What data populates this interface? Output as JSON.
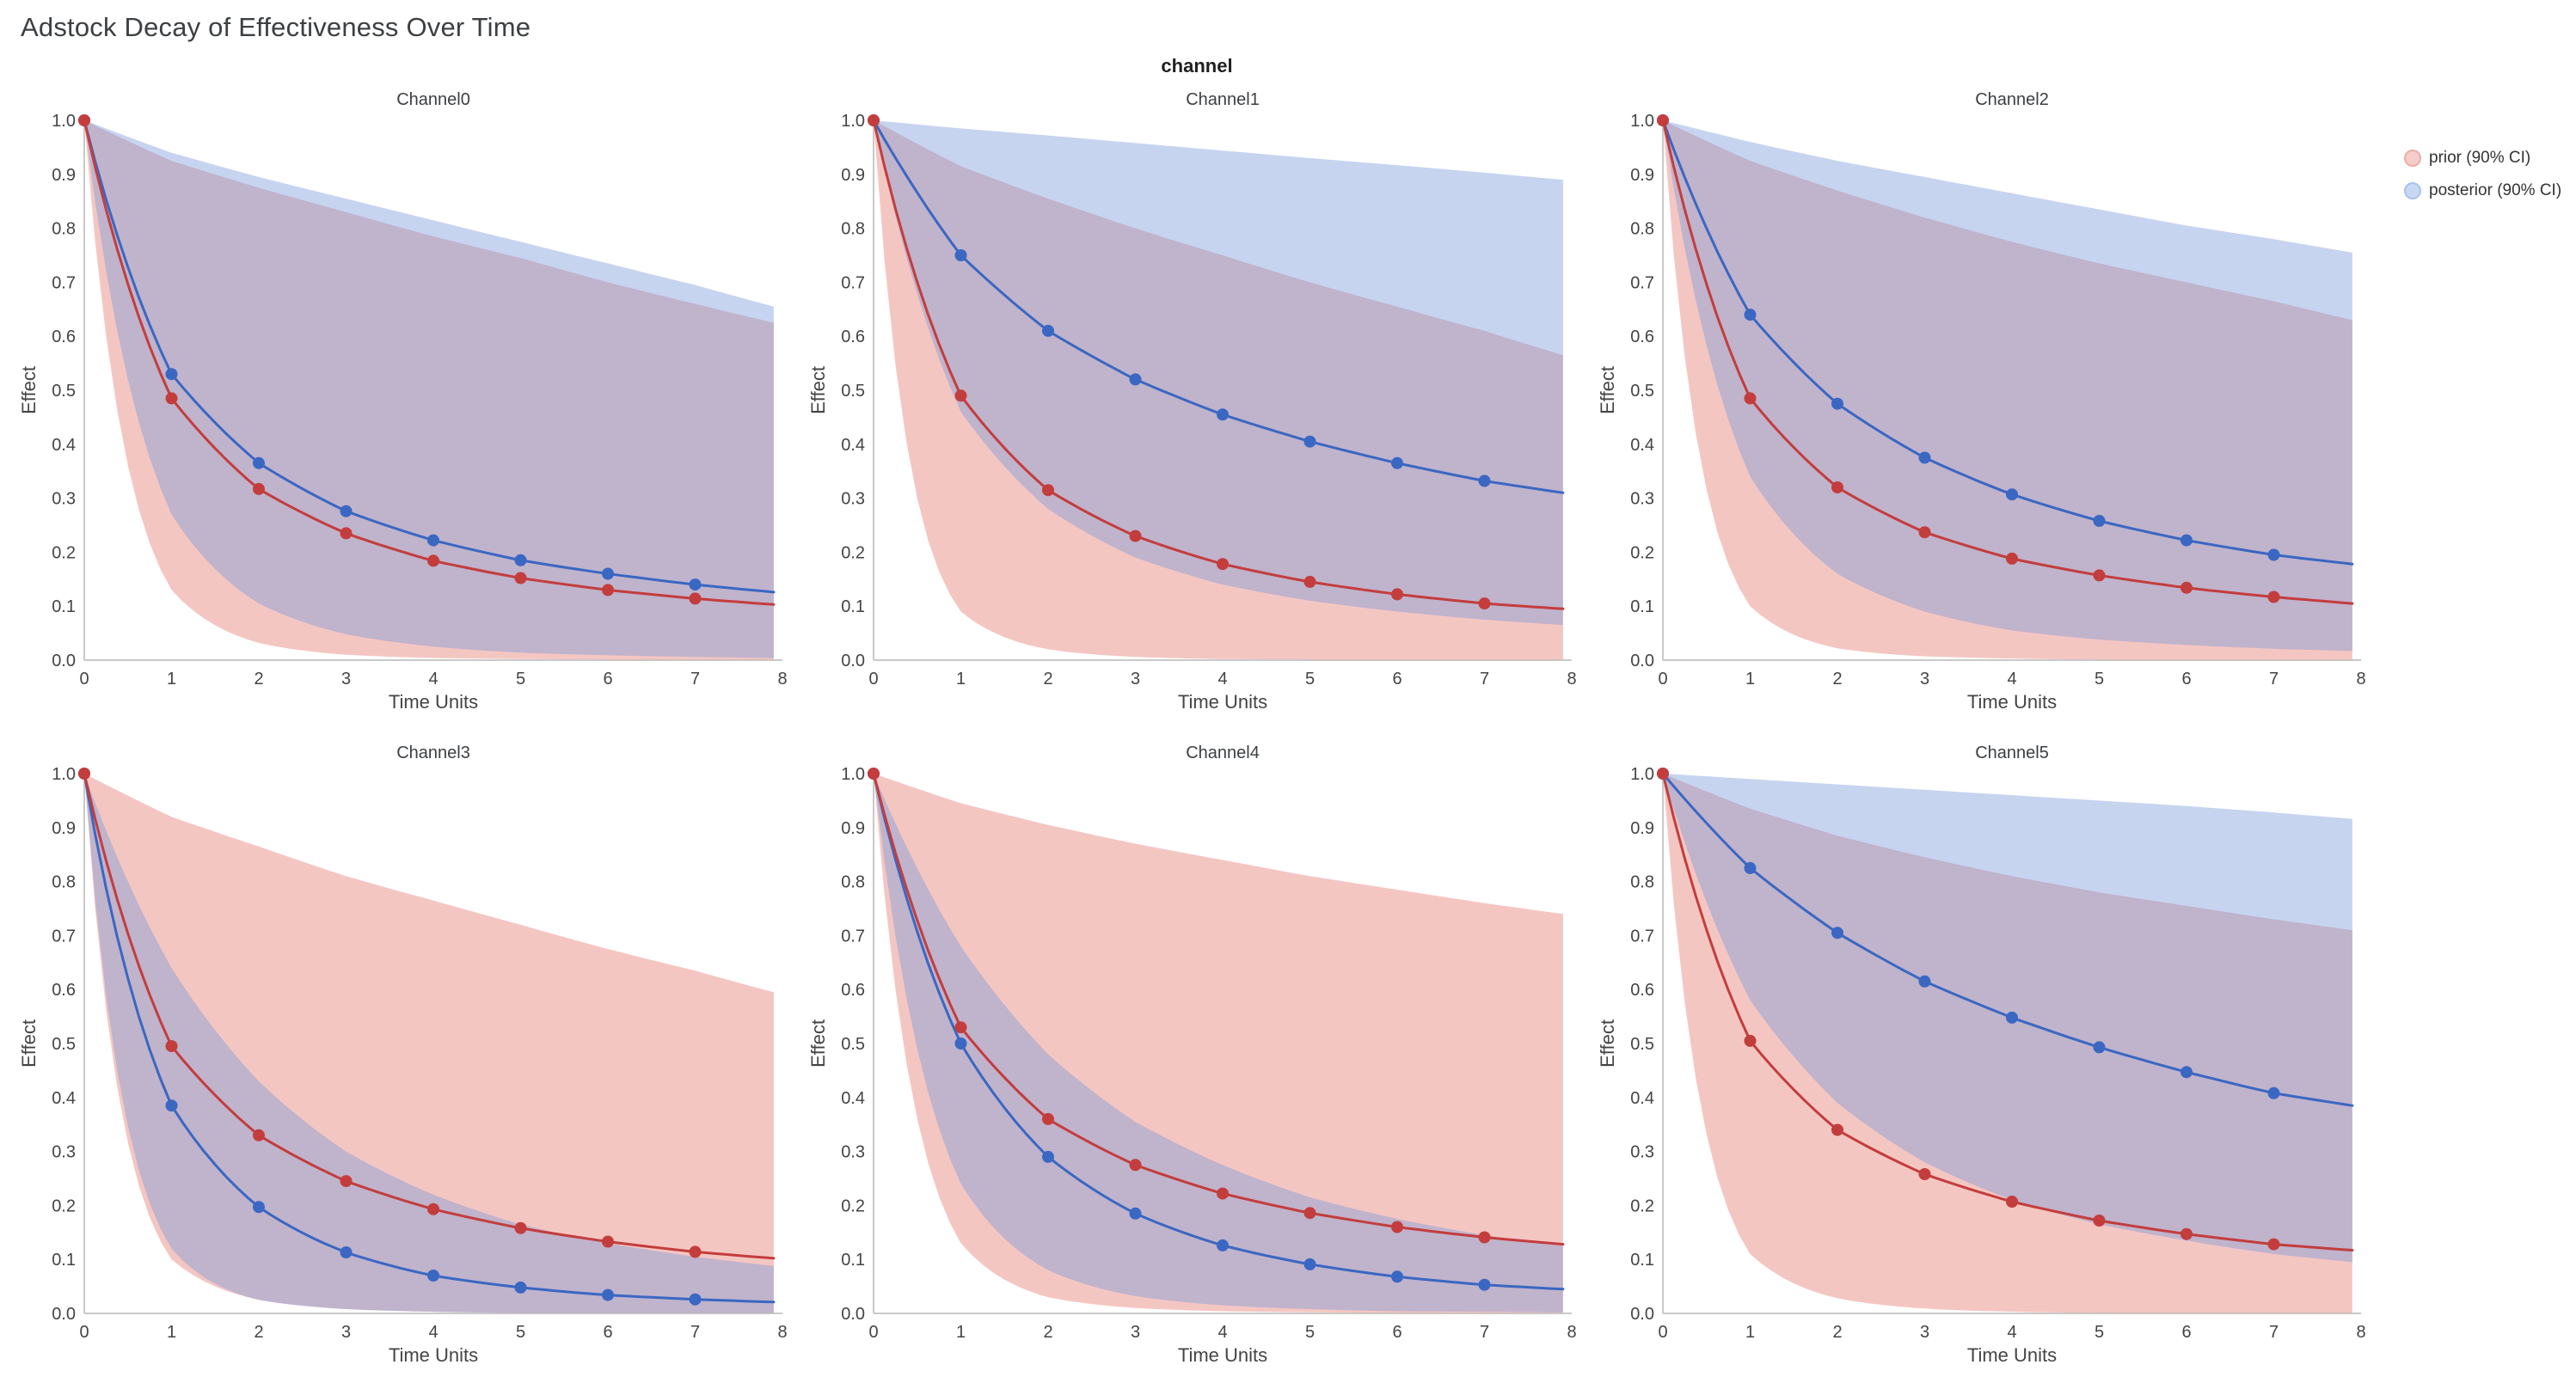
{
  "title": "Adstock Decay of Effectiveness Over Time",
  "facet_label": "channel",
  "axes": {
    "xlabel": "Time Units",
    "ylabel": "Effect",
    "xlim": [
      0,
      8
    ],
    "ylim": [
      0,
      1
    ],
    "x_ticks": [
      0,
      1,
      2,
      3,
      4,
      5,
      6,
      7,
      8
    ],
    "y_ticks": [
      "0.0",
      "0.1",
      "0.2",
      "0.3",
      "0.4",
      "0.5",
      "0.6",
      "0.7",
      "0.8",
      "0.9",
      "1.0"
    ],
    "grid": false
  },
  "legend": {
    "position": "top-right",
    "items": [
      {
        "id": "prior",
        "label": "prior (90% CI)",
        "swatch_fill": "#f4cdc9",
        "swatch_stroke": "#edaca4"
      },
      {
        "id": "posterior",
        "label": "posterior (90% CI)",
        "swatch_fill": "#c9d8f2",
        "swatch_stroke": "#a8c2ec"
      }
    ]
  },
  "style": {
    "prior_color": "#c33d3d",
    "posterior_color": "#3a67c2",
    "prior_band": "rgba(228,118,110,0.42)",
    "posterior_band": "rgba(120,153,219,0.42)",
    "axis_color": "#c9c9c9",
    "tick_text": "#444444",
    "title_text": "#3c4043",
    "marker_radius": 7,
    "line_width": 3
  },
  "chart_data": [
    {
      "type": "line",
      "title": "Channel0",
      "xlabel": "Time Units",
      "ylabel": "Effect",
      "x": [
        0,
        1,
        2,
        3,
        4,
        5,
        6,
        7,
        7.9
      ],
      "markers_at": [
        0,
        1,
        2,
        3,
        4,
        5,
        6,
        7
      ],
      "series": [
        {
          "name": "prior 90% CI",
          "role": "prior_band",
          "upper": [
            1.0,
            0.925,
            0.875,
            0.83,
            0.785,
            0.745,
            0.7,
            0.66,
            0.625
          ],
          "lower": [
            1.0,
            0.13,
            0.032,
            0.01,
            0.004,
            0.002,
            0.001,
            0.001,
            0.001
          ]
        },
        {
          "name": "posterior 90% CI",
          "role": "posterior_band",
          "upper": [
            1.0,
            0.94,
            0.895,
            0.855,
            0.815,
            0.775,
            0.735,
            0.695,
            0.655
          ],
          "lower": [
            1.0,
            0.27,
            0.105,
            0.048,
            0.025,
            0.014,
            0.009,
            0.006,
            0.004
          ]
        },
        {
          "name": "posterior mean",
          "role": "posterior_line",
          "values": [
            1.0,
            0.53,
            0.365,
            0.276,
            0.222,
            0.185,
            0.16,
            0.14,
            0.126
          ]
        },
        {
          "name": "prior mean",
          "role": "prior_line",
          "values": [
            1.0,
            0.485,
            0.317,
            0.235,
            0.184,
            0.152,
            0.13,
            0.114,
            0.103
          ]
        }
      ]
    },
    {
      "type": "line",
      "title": "Channel1",
      "xlabel": "Time Units",
      "ylabel": "Effect",
      "x": [
        0,
        1,
        2,
        3,
        4,
        5,
        6,
        7,
        7.9
      ],
      "markers_at": [
        0,
        1,
        2,
        3,
        4,
        5,
        6,
        7
      ],
      "series": [
        {
          "name": "prior 90% CI",
          "role": "prior_band",
          "upper": [
            1.0,
            0.915,
            0.855,
            0.8,
            0.75,
            0.7,
            0.655,
            0.61,
            0.565
          ],
          "lower": [
            1.0,
            0.09,
            0.02,
            0.006,
            0.002,
            0.001,
            0.001,
            0.001,
            0.001
          ]
        },
        {
          "name": "posterior 90% CI",
          "role": "posterior_band",
          "upper": [
            1.0,
            0.985,
            0.972,
            0.958,
            0.944,
            0.93,
            0.917,
            0.903,
            0.89
          ],
          "lower": [
            1.0,
            0.46,
            0.28,
            0.19,
            0.14,
            0.11,
            0.09,
            0.075,
            0.065
          ]
        },
        {
          "name": "posterior mean",
          "role": "posterior_line",
          "values": [
            1.0,
            0.75,
            0.61,
            0.52,
            0.455,
            0.405,
            0.365,
            0.332,
            0.31
          ]
        },
        {
          "name": "prior mean",
          "role": "prior_line",
          "values": [
            1.0,
            0.49,
            0.315,
            0.23,
            0.178,
            0.145,
            0.122,
            0.105,
            0.095
          ]
        }
      ]
    },
    {
      "type": "line",
      "title": "Channel2",
      "xlabel": "Time Units",
      "ylabel": "Effect",
      "x": [
        0,
        1,
        2,
        3,
        4,
        5,
        6,
        7,
        7.9
      ],
      "markers_at": [
        0,
        1,
        2,
        3,
        4,
        5,
        6,
        7
      ],
      "series": [
        {
          "name": "prior 90% CI",
          "role": "prior_band",
          "upper": [
            1.0,
            0.925,
            0.87,
            0.82,
            0.775,
            0.735,
            0.7,
            0.665,
            0.63
          ],
          "lower": [
            1.0,
            0.1,
            0.022,
            0.007,
            0.003,
            0.001,
            0.001,
            0.001,
            0.001
          ]
        },
        {
          "name": "posterior 90% CI",
          "role": "posterior_band",
          "upper": [
            1.0,
            0.96,
            0.925,
            0.895,
            0.865,
            0.835,
            0.805,
            0.78,
            0.755
          ],
          "lower": [
            1.0,
            0.34,
            0.16,
            0.09,
            0.055,
            0.038,
            0.028,
            0.021,
            0.017
          ]
        },
        {
          "name": "posterior mean",
          "role": "posterior_line",
          "values": [
            1.0,
            0.64,
            0.475,
            0.375,
            0.307,
            0.258,
            0.222,
            0.195,
            0.178
          ]
        },
        {
          "name": "prior mean",
          "role": "prior_line",
          "values": [
            1.0,
            0.485,
            0.32,
            0.237,
            0.188,
            0.157,
            0.134,
            0.117,
            0.105
          ]
        }
      ]
    },
    {
      "type": "line",
      "title": "Channel3",
      "xlabel": "Time Units",
      "ylabel": "Effect",
      "x": [
        0,
        1,
        2,
        3,
        4,
        5,
        6,
        7,
        7.9
      ],
      "markers_at": [
        0,
        1,
        2,
        3,
        4,
        5,
        6,
        7
      ],
      "series": [
        {
          "name": "prior 90% CI",
          "role": "prior_band",
          "upper": [
            1.0,
            0.92,
            0.865,
            0.81,
            0.765,
            0.72,
            0.675,
            0.635,
            0.595
          ],
          "lower": [
            1.0,
            0.1,
            0.025,
            0.008,
            0.003,
            0.001,
            0.001,
            0.001,
            0.001
          ]
        },
        {
          "name": "posterior 90% CI",
          "role": "posterior_band",
          "upper": [
            1.0,
            0.64,
            0.43,
            0.3,
            0.22,
            0.165,
            0.13,
            0.105,
            0.088
          ],
          "lower": [
            1.0,
            0.12,
            0.025,
            0.008,
            0.003,
            0.001,
            0.001,
            0.001,
            0.001
          ]
        },
        {
          "name": "posterior mean",
          "role": "posterior_line",
          "values": [
            1.0,
            0.385,
            0.197,
            0.113,
            0.07,
            0.048,
            0.034,
            0.026,
            0.021
          ]
        },
        {
          "name": "prior mean",
          "role": "prior_line",
          "values": [
            1.0,
            0.495,
            0.33,
            0.245,
            0.193,
            0.158,
            0.133,
            0.114,
            0.102
          ]
        }
      ]
    },
    {
      "type": "line",
      "title": "Channel4",
      "xlabel": "Time Units",
      "ylabel": "Effect",
      "x": [
        0,
        1,
        2,
        3,
        4,
        5,
        6,
        7,
        7.9
      ],
      "markers_at": [
        0,
        1,
        2,
        3,
        4,
        5,
        6,
        7
      ],
      "series": [
        {
          "name": "prior 90% CI",
          "role": "prior_band",
          "upper": [
            1.0,
            0.945,
            0.905,
            0.87,
            0.84,
            0.81,
            0.785,
            0.76,
            0.74
          ],
          "lower": [
            1.0,
            0.13,
            0.03,
            0.01,
            0.004,
            0.002,
            0.001,
            0.001,
            0.001
          ]
        },
        {
          "name": "posterior 90% CI",
          "role": "posterior_band",
          "upper": [
            1.0,
            0.68,
            0.48,
            0.355,
            0.275,
            0.215,
            0.175,
            0.145,
            0.125
          ],
          "lower": [
            1.0,
            0.24,
            0.08,
            0.032,
            0.015,
            0.008,
            0.004,
            0.003,
            0.002
          ]
        },
        {
          "name": "posterior mean",
          "role": "posterior_line",
          "values": [
            1.0,
            0.5,
            0.29,
            0.185,
            0.126,
            0.091,
            0.068,
            0.053,
            0.045
          ]
        },
        {
          "name": "prior mean",
          "role": "prior_line",
          "values": [
            1.0,
            0.53,
            0.36,
            0.275,
            0.222,
            0.186,
            0.16,
            0.141,
            0.128
          ]
        }
      ]
    },
    {
      "type": "line",
      "title": "Channel5",
      "xlabel": "Time Units",
      "ylabel": "Effect",
      "x": [
        0,
        1,
        2,
        3,
        4,
        5,
        6,
        7,
        7.9
      ],
      "markers_at": [
        0,
        1,
        2,
        3,
        4,
        5,
        6,
        7
      ],
      "series": [
        {
          "name": "prior 90% CI",
          "role": "prior_band",
          "upper": [
            1.0,
            0.935,
            0.885,
            0.845,
            0.81,
            0.78,
            0.755,
            0.73,
            0.71
          ],
          "lower": [
            1.0,
            0.11,
            0.028,
            0.009,
            0.003,
            0.001,
            0.001,
            0.001,
            0.001
          ]
        },
        {
          "name": "posterior 90% CI",
          "role": "posterior_band",
          "upper": [
            1.0,
            0.99,
            0.98,
            0.97,
            0.96,
            0.95,
            0.94,
            0.928,
            0.916
          ],
          "lower": [
            1.0,
            0.58,
            0.39,
            0.28,
            0.21,
            0.165,
            0.135,
            0.11,
            0.095
          ]
        },
        {
          "name": "posterior mean",
          "role": "posterior_line",
          "values": [
            1.0,
            0.825,
            0.705,
            0.615,
            0.548,
            0.493,
            0.447,
            0.408,
            0.385
          ]
        },
        {
          "name": "prior mean",
          "role": "prior_line",
          "values": [
            1.0,
            0.505,
            0.34,
            0.258,
            0.207,
            0.172,
            0.147,
            0.128,
            0.117
          ]
        }
      ]
    }
  ]
}
